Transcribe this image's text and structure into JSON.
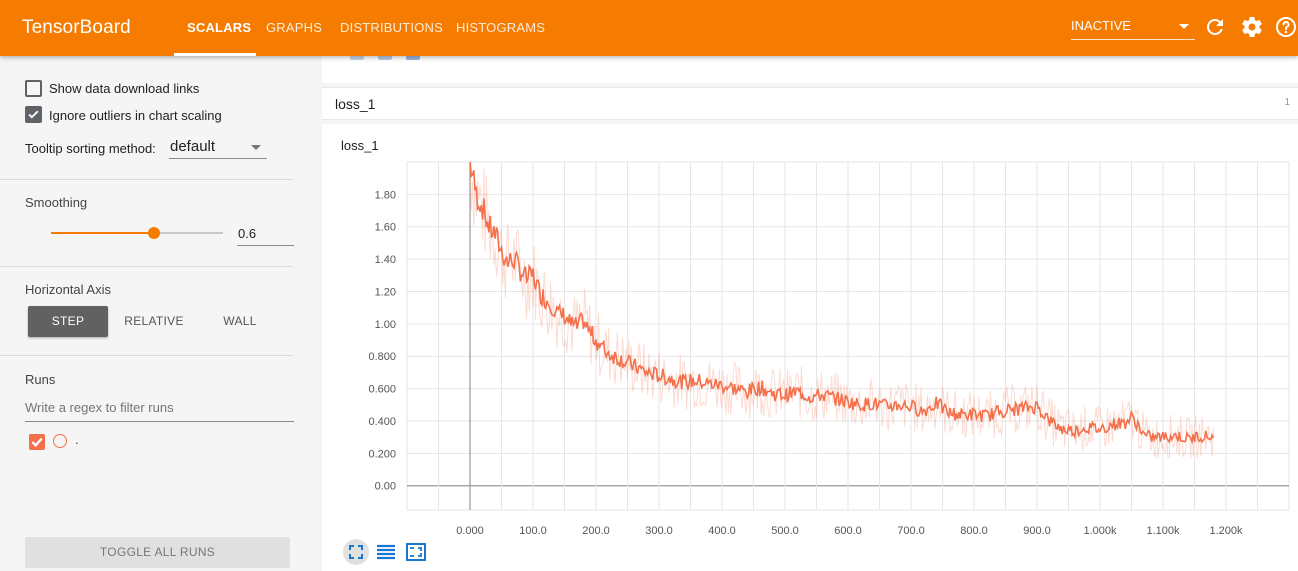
{
  "app": {
    "title": "TensorBoard",
    "accent_color": "#f57c00"
  },
  "nav": {
    "tabs": [
      {
        "label": "SCALARS",
        "active": true
      },
      {
        "label": "GRAPHS",
        "active": false
      },
      {
        "label": "DISTRIBUTIONS",
        "active": false
      },
      {
        "label": "HISTOGRAMS",
        "active": false
      }
    ],
    "plugin_select": "INACTIVE",
    "icons": [
      "refresh-icon",
      "settings-icon",
      "help-icon"
    ]
  },
  "sidebar": {
    "show_download_links": {
      "label": "Show data download links",
      "checked": false
    },
    "ignore_outliers": {
      "label": "Ignore outliers in chart scaling",
      "checked": true
    },
    "tooltip_sorting": {
      "label": "Tooltip sorting method:",
      "value": "default"
    },
    "smoothing": {
      "label": "Smoothing",
      "value": "0.6",
      "level": 0.6
    },
    "horizontal_axis": {
      "label": "Horizontal Axis",
      "options": [
        "STEP",
        "RELATIVE",
        "WALL"
      ],
      "selected": "STEP"
    },
    "runs": {
      "label": "Runs",
      "filter_placeholder": "Write a regex to filter runs",
      "items": [
        {
          "name": ".",
          "checked": true,
          "color": "#f4704b"
        }
      ]
    },
    "toggle_all_label": "TOGGLE ALL RUNS"
  },
  "main": {
    "card_header": {
      "title": "loss_1",
      "count": "1"
    },
    "chart_title": "loss_1",
    "card_buttons": [
      "fit-to-data-icon",
      "toggle-log-scale-icon",
      "expand-chart-icon"
    ]
  },
  "chart_data": {
    "type": "line",
    "title": "loss_1",
    "xlabel": "",
    "ylabel": "",
    "x_tick_labels": [
      "0.000",
      "100.0",
      "200.0",
      "300.0",
      "400.0",
      "500.0",
      "600.0",
      "700.0",
      "800.0",
      "900.0",
      "1.000k",
      "1.100k",
      "1.200k"
    ],
    "y_tick_labels": [
      "0.00",
      "0.200",
      "0.400",
      "0.600",
      "0.800",
      "1.00",
      "1.20",
      "1.40",
      "1.60",
      "1.80"
    ],
    "xlim": [
      -100,
      1300
    ],
    "ylim": [
      -0.15,
      2.0
    ],
    "grid": true,
    "series_color": "#f4704b",
    "series": [
      {
        "smoothed": true,
        "x": [
          0,
          10,
          20,
          30,
          40,
          50,
          60,
          70,
          80,
          90,
          100,
          110,
          120,
          130,
          140,
          150,
          160,
          170,
          180,
          190,
          200,
          210,
          220,
          240,
          260,
          280,
          300,
          320,
          340,
          360,
          380,
          400,
          420,
          440,
          460,
          480,
          500,
          520,
          540,
          560,
          580,
          600,
          620,
          640,
          660,
          680,
          700,
          720,
          740,
          760,
          780,
          800,
          820,
          840,
          860,
          880,
          900,
          910,
          920,
          940,
          960,
          980,
          1000,
          1020,
          1040,
          1050,
          1060,
          1070,
          1080,
          1100,
          1120,
          1140,
          1160,
          1180
        ],
        "y": [
          2.0,
          1.8,
          1.72,
          1.6,
          1.55,
          1.45,
          1.38,
          1.4,
          1.33,
          1.28,
          1.3,
          1.2,
          1.15,
          1.12,
          1.06,
          1.05,
          1.0,
          0.98,
          1.02,
          0.95,
          0.9,
          0.85,
          0.82,
          0.78,
          0.74,
          0.7,
          0.68,
          0.66,
          0.64,
          0.65,
          0.63,
          0.62,
          0.6,
          0.58,
          0.61,
          0.57,
          0.56,
          0.58,
          0.55,
          0.56,
          0.54,
          0.52,
          0.5,
          0.51,
          0.49,
          0.5,
          0.49,
          0.46,
          0.51,
          0.45,
          0.44,
          0.44,
          0.43,
          0.46,
          0.47,
          0.48,
          0.49,
          0.45,
          0.4,
          0.35,
          0.34,
          0.36,
          0.35,
          0.38,
          0.39,
          0.42,
          0.38,
          0.31,
          0.3,
          0.3,
          0.31,
          0.29,
          0.31,
          0.3
        ]
      }
    ]
  }
}
